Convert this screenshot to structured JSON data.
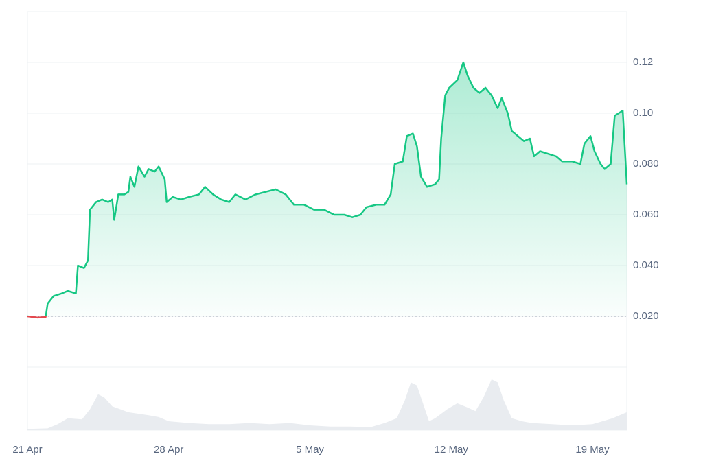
{
  "chart_data": {
    "type": "line",
    "xlim": [
      0,
      29.7
    ],
    "xticks": [
      {
        "value": 0,
        "label": "21 Apr"
      },
      {
        "value": 7,
        "label": "28 Apr"
      },
      {
        "value": 14,
        "label": "5 May"
      },
      {
        "value": 21,
        "label": "12 May"
      },
      {
        "value": 28,
        "label": "19 May"
      }
    ],
    "ylim": [
      0,
      0.14
    ],
    "yticks": [
      {
        "value": 0.02,
        "label": "0.020"
      },
      {
        "value": 0.04,
        "label": "0.040"
      },
      {
        "value": 0.06,
        "label": "0.060"
      },
      {
        "value": 0.08,
        "label": "0.080"
      },
      {
        "value": 0.1,
        "label": "0.10"
      },
      0.12
    ],
    "y2lim": [
      0,
      100
    ],
    "grid": true,
    "down_color": "#e5484d",
    "series": [
      {
        "color": "#16c784",
        "x": [
          0,
          0.5,
          0.9,
          1.0,
          1.3,
          1.7,
          2.0,
          2.4,
          2.5,
          2.8,
          3.0,
          3.1,
          3.4,
          3.7,
          4.0,
          4.2,
          4.3,
          4.5,
          4.8,
          5.0,
          5.1,
          5.3,
          5.5,
          5.8,
          6.0,
          6.3,
          6.5,
          6.8,
          6.9,
          7.2,
          7.6,
          8.0,
          8.5,
          8.8,
          9.2,
          9.6,
          10.0,
          10.3,
          10.8,
          11.3,
          11.8,
          12.3,
          12.8,
          13.2,
          13.7,
          14.2,
          14.7,
          15.2,
          15.7,
          16.1,
          16.5,
          16.8,
          17.3,
          17.7,
          18.0,
          18.2,
          18.6,
          18.8,
          19.1,
          19.3,
          19.5,
          19.8,
          20.2,
          20.4,
          20.5,
          20.7,
          20.9,
          21.3,
          21.6,
          21.8,
          22.1,
          22.4,
          22.7,
          23.0,
          23.3,
          23.5,
          23.8,
          24.0,
          24.3,
          24.6,
          24.9,
          25.1,
          25.4,
          25.8,
          26.2,
          26.5,
          27.0,
          27.4,
          27.6,
          27.9,
          28.1,
          28.4,
          28.6,
          28.9,
          29.1,
          29.3,
          29.5,
          29.7
        ],
        "values": [
          0.02,
          0.0195,
          0.0197,
          0.025,
          0.028,
          0.029,
          0.03,
          0.029,
          0.04,
          0.039,
          0.042,
          0.062,
          0.065,
          0.066,
          0.065,
          0.066,
          0.058,
          0.068,
          0.068,
          0.069,
          0.075,
          0.071,
          0.079,
          0.075,
          0.078,
          0.077,
          0.079,
          0.074,
          0.065,
          0.067,
          0.066,
          0.067,
          0.068,
          0.071,
          0.068,
          0.066,
          0.065,
          0.068,
          0.066,
          0.068,
          0.069,
          0.07,
          0.068,
          0.064,
          0.064,
          0.062,
          0.062,
          0.06,
          0.06,
          0.059,
          0.06,
          0.063,
          0.064,
          0.064,
          0.068,
          0.08,
          0.081,
          0.091,
          0.092,
          0.087,
          0.075,
          0.071,
          0.072,
          0.074,
          0.09,
          0.107,
          0.11,
          0.113,
          0.12,
          0.115,
          0.11,
          0.108,
          0.11,
          0.107,
          0.102,
          0.106,
          0.1,
          0.093,
          0.091,
          0.089,
          0.09,
          0.083,
          0.085,
          0.084,
          0.083,
          0.081,
          0.081,
          0.08,
          0.088,
          0.091,
          0.085,
          0.08,
          0.078,
          0.08,
          0.099,
          0.1,
          0.101,
          0.072
        ]
      },
      {
        "color": "#e9ecf0",
        "axis": "y2",
        "x": [
          0,
          1,
          1.5,
          2,
          2.7,
          3.1,
          3.5,
          3.8,
          4.2,
          5,
          6,
          6.5,
          7,
          8,
          9,
          10,
          11,
          12,
          13,
          14,
          15,
          16,
          17,
          17.7,
          18.3,
          18.7,
          19.0,
          19.3,
          19.6,
          19.9,
          20.2,
          20.8,
          21.3,
          21.8,
          22.2,
          22.6,
          23.0,
          23.3,
          23.6,
          24.0,
          24.5,
          25,
          26,
          27,
          28,
          28.5,
          29,
          29.7
        ],
        "values": [
          2,
          3,
          10,
          20,
          18,
          35,
          60,
          55,
          40,
          30,
          25,
          22,
          15,
          12,
          10,
          10,
          12,
          10,
          12,
          8,
          6,
          6,
          5,
          12,
          20,
          50,
          80,
          75,
          45,
          15,
          20,
          35,
          45,
          38,
          32,
          55,
          85,
          80,
          50,
          20,
          15,
          12,
          10,
          8,
          10,
          15,
          20,
          30
        ]
      }
    ]
  }
}
